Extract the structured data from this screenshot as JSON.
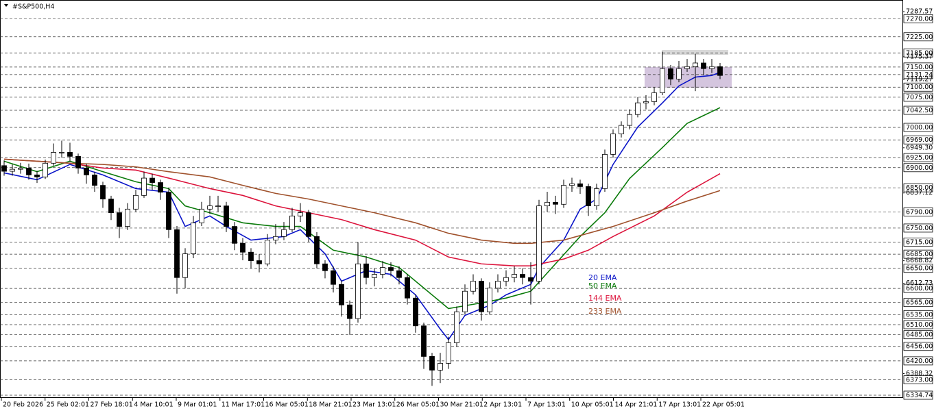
{
  "chart_data": {
    "type": "candlestick",
    "title": "#S&P500,H4",
    "categories": [
      "20 Feb 2026",
      "25 Feb 02:01",
      "27 Feb 18:01",
      "4 Mar 10:01",
      "9 Mar 01:01",
      "11 Mar 17:01",
      "16 Mar 05:01",
      "18 Mar 21:01",
      "23 Mar 13:01",
      "26 Mar 05:01",
      "30 Mar 21:01",
      "2 Apr 13:01",
      "7 Apr 13:01",
      "10 Apr 05:01",
      "14 Apr 21:01",
      "17 Apr 13:01",
      "22 Apr 05:01"
    ],
    "open": [
      6905,
      6891,
      6896,
      6899,
      6882,
      6877,
      6911,
      6938,
      6938,
      6928,
      6899,
      6882,
      6856,
      6822,
      6788,
      6754,
      6797,
      6831,
      6874,
      6863,
      6839,
      6746,
      6627,
      6686,
      6763,
      6797,
      6805,
      6805,
      6754,
      6712,
      6690,
      6669,
      6661,
      6720,
      6729,
      6746,
      6780,
      6788,
      6729,
      6661,
      6644,
      6610,
      6559,
      6525,
      6661,
      6627,
      6635,
      6652,
      6644,
      6627,
      6576,
      6507,
      6431,
      6397,
      6414,
      6465,
      6542,
      6593,
      6618,
      6542,
      6601,
      6618,
      6627,
      6635,
      6627,
      6618,
      6805,
      6814,
      6809,
      6856,
      6860,
      6853,
      6805,
      6848,
      6933,
      6984,
      7005,
      7032,
      7061,
      7064,
      7086,
      7146,
      7120,
      7146,
      7151,
      7160,
      7146,
      7151
    ],
    "high": [
      6918,
      6908,
      6912,
      6910,
      6892,
      6920,
      6960,
      6967,
      6962,
      6935,
      6910,
      6890,
      6865,
      6830,
      6800,
      6812,
      6845,
      6890,
      6885,
      6870,
      6848,
      6755,
      6700,
      6780,
      6815,
      6830,
      6830,
      6815,
      6765,
      6725,
      6700,
      6685,
      6735,
      6760,
      6765,
      6800,
      6812,
      6795,
      6740,
      6670,
      6655,
      6620,
      6570,
      6715,
      6680,
      6650,
      6668,
      6665,
      6655,
      6635,
      6585,
      6515,
      6440,
      6440,
      6480,
      6555,
      6610,
      6635,
      6625,
      6615,
      6635,
      6645,
      6655,
      6650,
      6665,
      6820,
      6840,
      6830,
      6870,
      6875,
      6870,
      6860,
      6860,
      6945,
      6995,
      7015,
      7045,
      7075,
      7080,
      7100,
      7188,
      7155,
      7165,
      7170,
      7183,
      7170,
      7170,
      7160
    ],
    "low": [
      6880,
      6880,
      6885,
      6870,
      6862,
      6872,
      6905,
      6925,
      6915,
      6885,
      6860,
      6840,
      6800,
      6770,
      6725,
      6745,
      6790,
      6825,
      6845,
      6820,
      6725,
      6587,
      6600,
      6675,
      6755,
      6785,
      6790,
      6740,
      6695,
      6670,
      6650,
      6640,
      6655,
      6710,
      6720,
      6740,
      6765,
      6715,
      6650,
      6625,
      6590,
      6530,
      6485,
      6515,
      6610,
      6605,
      6625,
      6630,
      6610,
      6560,
      6490,
      6400,
      6358,
      6365,
      6400,
      6455,
      6535,
      6585,
      6520,
      6535,
      6590,
      6605,
      6615,
      6610,
      6560,
      6610,
      6790,
      6785,
      6800,
      6840,
      6835,
      6780,
      6795,
      6840,
      6925,
      6975,
      6995,
      7025,
      7045,
      7055,
      7080,
      7105,
      7112,
      7138,
      7090,
      7130,
      7135,
      7120
    ],
    "close": [
      6891,
      6896,
      6899,
      6882,
      6877,
      6911,
      6938,
      6938,
      6928,
      6899,
      6882,
      6856,
      6822,
      6788,
      6754,
      6797,
      6831,
      6874,
      6863,
      6839,
      6746,
      6627,
      6686,
      6763,
      6797,
      6805,
      6805,
      6754,
      6712,
      6690,
      6669,
      6661,
      6720,
      6729,
      6746,
      6780,
      6788,
      6729,
      6661,
      6644,
      6610,
      6559,
      6525,
      6661,
      6627,
      6635,
      6652,
      6644,
      6627,
      6576,
      6507,
      6431,
      6397,
      6414,
      6465,
      6542,
      6593,
      6618,
      6542,
      6601,
      6618,
      6627,
      6635,
      6627,
      6618,
      6805,
      6814,
      6809,
      6856,
      6860,
      6853,
      6805,
      6848,
      6933,
      6984,
      7005,
      7032,
      7061,
      7064,
      7086,
      7146,
      7120,
      7146,
      7151,
      7160,
      7146,
      7151,
      7129
    ],
    "series": [
      {
        "name": "20 EMA",
        "color": "#0a14c8",
        "x": [
          0,
          4,
          8,
          12,
          16,
          20,
          22,
          25,
          27,
          30,
          34,
          36,
          39,
          41,
          44,
          47,
          50,
          53,
          54,
          56,
          59,
          61,
          64,
          65,
          68,
          70,
          72,
          74,
          77,
          80,
          82,
          84,
          86,
          87
        ],
        "values": [
          6887,
          6870,
          6908,
          6882,
          6848,
          6839,
          6754,
          6780,
          6754,
          6720,
          6729,
          6746,
          6686,
          6618,
          6644,
          6635,
          6584,
          6499,
          6473,
          6533,
          6558,
          6584,
          6610,
          6652,
          6720,
          6797,
          6822,
          6908,
          7001,
          7061,
          7103,
          7125,
          7129,
          7137
        ]
      },
      {
        "name": "50 EMA",
        "color": "#0a7a0a",
        "x": [
          0,
          4,
          8,
          12,
          16,
          20,
          22,
          25,
          29,
          33,
          36,
          40,
          44,
          48,
          51,
          54,
          58,
          61,
          64,
          67,
          70,
          73,
          76,
          80,
          83,
          87
        ],
        "values": [
          6916,
          6890,
          6916,
          6890,
          6865,
          6848,
          6805,
          6788,
          6763,
          6754,
          6754,
          6695,
          6678,
          6652,
          6601,
          6550,
          6564,
          6576,
          6593,
          6661,
          6729,
          6788,
          6873,
          6950,
          7010,
          7049
        ]
      },
      {
        "name": "144 EMA",
        "color": "#dc143c",
        "x": [
          0,
          8,
          12,
          16,
          20,
          25,
          29,
          33,
          37,
          41,
          45,
          50,
          54,
          58,
          62,
          64,
          68,
          71,
          74,
          79,
          83,
          87
        ],
        "values": [
          6921,
          6911,
          6899,
          6894,
          6874,
          6848,
          6831,
          6805,
          6788,
          6771,
          6746,
          6720,
          6678,
          6661,
          6656,
          6656,
          6673,
          6695,
          6729,
          6780,
          6839,
          6885
        ]
      },
      {
        "name": "233 EMA",
        "color": "#a0522d",
        "x": [
          0,
          8,
          12,
          16,
          20,
          25,
          29,
          33,
          37,
          41,
          45,
          50,
          54,
          58,
          62,
          64,
          68,
          71,
          74,
          79,
          83,
          87
        ],
        "values": [
          6921,
          6911,
          6908,
          6902,
          6890,
          6877,
          6856,
          6836,
          6822,
          6805,
          6788,
          6763,
          6737,
          6720,
          6712,
          6712,
          6720,
          6737,
          6754,
          6788,
          6817,
          6843
        ]
      }
    ],
    "ylim": [
      6334.74,
      7287.57
    ],
    "levels": [
      {
        "value": 7270,
        "label": "7270.00"
      },
      {
        "value": 7225,
        "label": "7225.00"
      },
      {
        "value": 7185,
        "label": "7185.00"
      },
      {
        "value": 7150,
        "label": "7150.00"
      },
      {
        "value": 7131.24,
        "label": "7131.24"
      },
      {
        "value": 7100,
        "label": "7100.00"
      },
      {
        "value": 7075,
        "label": "7075.00"
      },
      {
        "value": 7042.5,
        "label": "7042.50"
      },
      {
        "value": 7000,
        "label": "7000.00"
      },
      {
        "value": 6969,
        "label": "6969.00"
      },
      {
        "value": 6925,
        "label": "6925.00"
      },
      {
        "value": 6900,
        "label": "6900.00"
      },
      {
        "value": 6850,
        "label": "6850.00"
      },
      {
        "value": 6790,
        "label": "6790.00"
      },
      {
        "value": 6750,
        "label": "6750.00"
      },
      {
        "value": 6715,
        "label": "6715.00"
      },
      {
        "value": 6685,
        "label": "6685.00"
      },
      {
        "value": 6650,
        "label": "6650.00"
      },
      {
        "value": 6600,
        "label": "6600.00"
      },
      {
        "value": 6565,
        "label": "6565.00"
      },
      {
        "value": 6535,
        "label": "6535.00"
      },
      {
        "value": 6510,
        "label": "6510.00"
      },
      {
        "value": 6485,
        "label": "6485.00"
      },
      {
        "value": 6456,
        "label": "6456.00"
      },
      {
        "value": 6420,
        "label": "6420.00"
      },
      {
        "value": 6373,
        "label": "6373.00"
      },
      {
        "value": 6334.74,
        "label": "6334.74"
      }
    ],
    "yticks": [
      7287.57,
      7175.37,
      7119.27,
      {
        "value": 6949.3,
        "label": "6949.30"
      },
      6837.12,
      6668.82,
      6612.73,
      6388.32
    ]
  }
}
